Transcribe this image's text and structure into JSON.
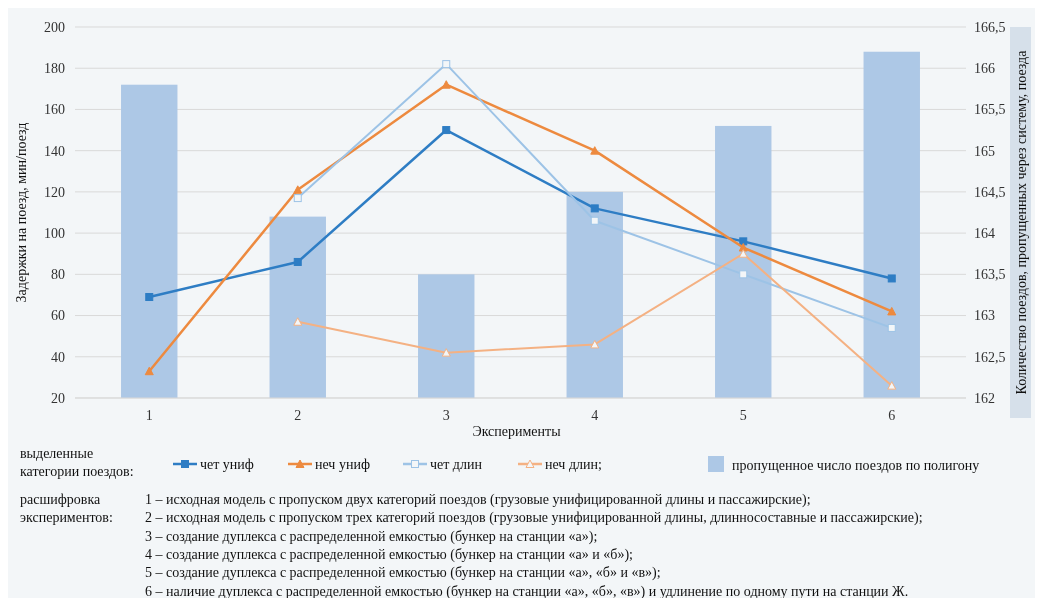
{
  "chart_data": {
    "type": "line",
    "xlabel": "Эксперименты",
    "ylabel": "Задержки на поезд, мин/поезд",
    "y2label": "Количество поездов, пропущенных через систему, поезда",
    "categories": [
      "1",
      "2",
      "3",
      "4",
      "5",
      "6"
    ],
    "series": [
      {
        "name": "пропущенное число поездов по полигону",
        "type": "bar",
        "axis": "y2",
        "color": "#adc8e6",
        "values": [
          165.8,
          164.2,
          163.5,
          164.5,
          165.3,
          166.2
        ]
      },
      {
        "name": "чет униф",
        "color": "#2e7dc4",
        "marker": "square",
        "values": [
          69,
          86,
          150,
          112,
          96,
          78
        ]
      },
      {
        "name": "неч униф",
        "color": "#ed8a3f",
        "marker": "triangle",
        "values": [
          33,
          121,
          172,
          140,
          93,
          62
        ]
      },
      {
        "name": "чет длин",
        "color": "#9dc3e6",
        "marker": "square",
        "values": [
          null,
          117,
          182,
          106,
          80,
          54
        ]
      },
      {
        "name": "неч длин;",
        "color": "#f4b183",
        "marker": "triangle",
        "values": [
          null,
          57,
          42,
          46,
          90,
          26
        ]
      }
    ],
    "ylim": [
      20,
      200
    ],
    "yticks": [
      20,
      40,
      60,
      80,
      100,
      120,
      140,
      160,
      180,
      200
    ],
    "y2lim": [
      162,
      166.5
    ],
    "y2ticks": [
      {
        "value": 162,
        "label": "162"
      },
      {
        "value": 162.5,
        "label": "162,5"
      },
      {
        "value": 163,
        "label": "163"
      },
      {
        "value": 163.5,
        "label": "163,5"
      },
      {
        "value": 164,
        "label": "164"
      },
      {
        "value": 164.5,
        "label": "164,5"
      },
      {
        "value": 165,
        "label": "165"
      },
      {
        "value": 165.5,
        "label": "165,5"
      },
      {
        "value": 166,
        "label": "166"
      },
      {
        "value": 166.5,
        "label": "166,5"
      }
    ],
    "grid": "y",
    "legend": "bottom",
    "legend_title": "выделенные категории поездов:",
    "annotations": [
      "расшифровка экспериментов:",
      "1 – исходная модель с пропуском двух категорий поездов (грузовые унифицированной длины и пассажирские);",
      "2 –  исходная модель с пропуском трех категорий поездов (грузовые унифицированной длины, длинносоставные и пассажирские);",
      "3 –  создание дуплекса с распределенной емкостью (бункер на станции «а»);",
      "4 –  создание дуплекса с распределенной емкостью (бункер на станции «а» и «б»);",
      "5 –  создание дуплекса с распределенной емкостью (бункер на станции «а», «б» и  «в»);",
      "6 –  наличие дуплекса с распределенной емкостью (бункер на станции «а», «б», «в») и удлинение по одному пути на станции Ж."
    ]
  }
}
